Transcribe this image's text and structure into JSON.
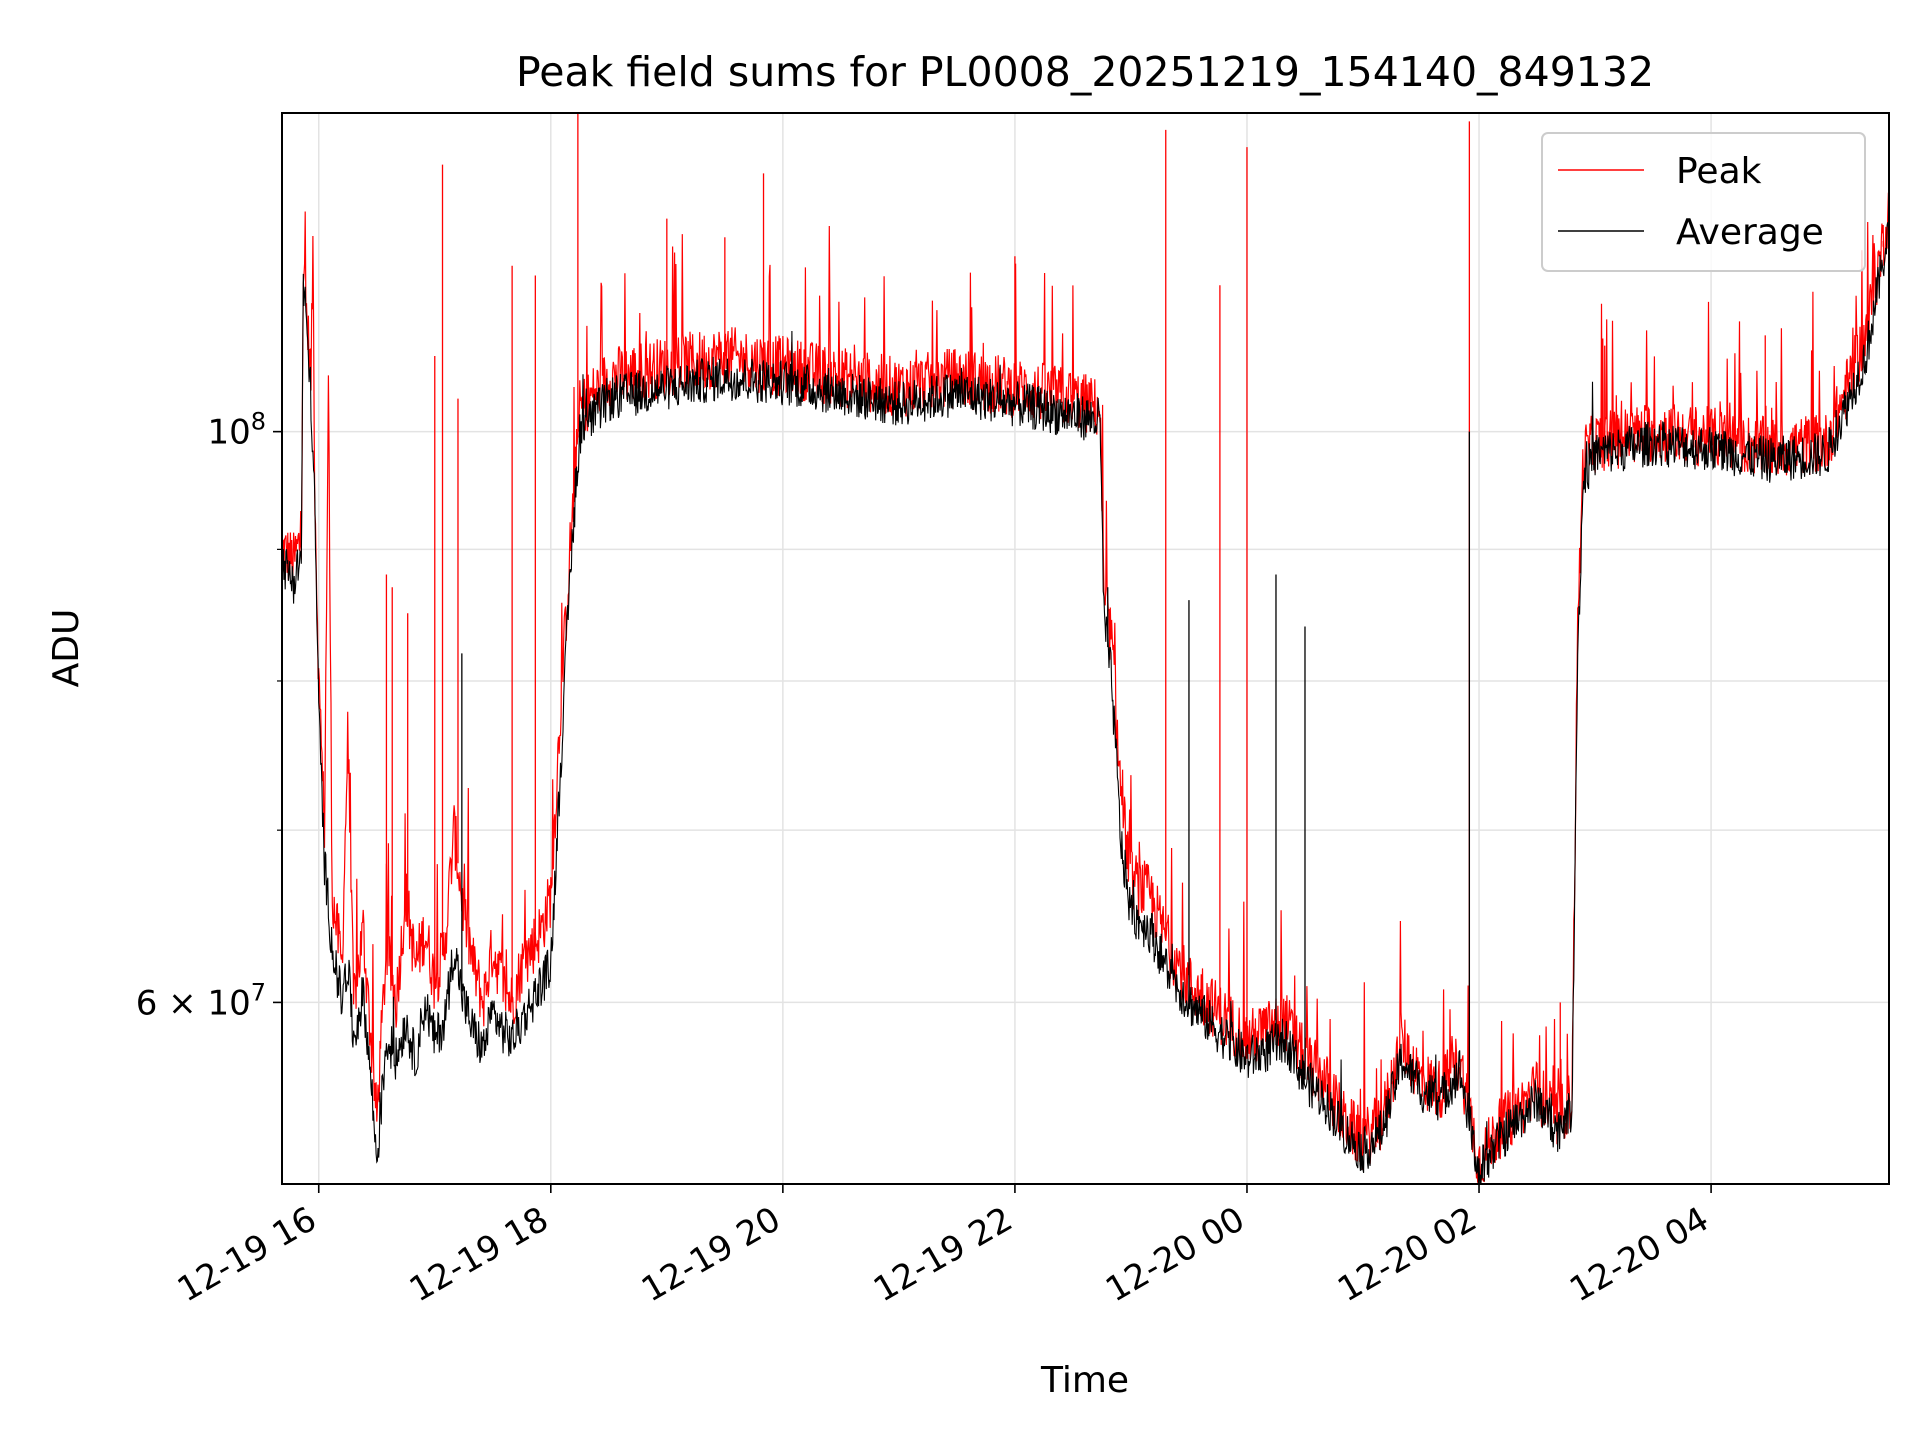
{
  "chart_data": {
    "type": "line",
    "title": "Peak field sums for PL0008_20251219_154140_849132",
    "xlabel": "Time",
    "ylabel": "ADU",
    "y_scale": "log",
    "ylim": [
      51000000,
      133000000
    ],
    "xlim": [
      "2025-12-19 15:41",
      "2025-12-20 05:32"
    ],
    "grid": true,
    "legend_position": "top-right",
    "x_ticks": [
      {
        "time": "2025-12-19 16:00",
        "label": "12-19 16"
      },
      {
        "time": "2025-12-19 18:00",
        "label": "12-19 18"
      },
      {
        "time": "2025-12-19 20:00",
        "label": "12-19 20"
      },
      {
        "time": "2025-12-19 22:00",
        "label": "12-19 22"
      },
      {
        "time": "2025-12-20 00:00",
        "label": "12-20 00"
      },
      {
        "time": "2025-12-20 02:00",
        "label": "12-20 02"
      },
      {
        "time": "2025-12-20 04:00",
        "label": "12-20 04"
      }
    ],
    "y_ticks": [
      {
        "value": 100000000,
        "base": "10",
        "exp": "8"
      },
      {
        "value": 60000000,
        "base": "6 × 10",
        "exp": "7"
      }
    ],
    "y_minor_ticks": [
      70000000,
      80000000,
      90000000
    ],
    "series": [
      {
        "name": "Peak",
        "color": "#ff0000",
        "points": [
          [
            "2025-12-19 15:41",
            90000000
          ],
          [
            "2025-12-19 15:47",
            89000000
          ],
          [
            "2025-12-19 15:51",
            91000000
          ],
          [
            "2025-12-19 15:52",
            116000000
          ],
          [
            "2025-12-19 15:53",
            113000000
          ],
          [
            "2025-12-19 15:56",
            105000000
          ],
          [
            "2025-12-19 15:57",
            118000000
          ],
          [
            "2025-12-19 15:58",
            95000000
          ],
          [
            "2025-12-19 16:00",
            80000000
          ],
          [
            "2025-12-19 16:03",
            70000000
          ],
          [
            "2025-12-19 16:05",
            104000000
          ],
          [
            "2025-12-19 16:07",
            66000000
          ],
          [
            "2025-12-19 16:12",
            62000000
          ],
          [
            "2025-12-19 16:15",
            76000000
          ],
          [
            "2025-12-19 16:18",
            60000000
          ],
          [
            "2025-12-19 16:23",
            64000000
          ],
          [
            "2025-12-19 16:27",
            58000000
          ],
          [
            "2025-12-19 16:30",
            54000000
          ],
          [
            "2025-12-19 16:35",
            63000000
          ],
          [
            "2025-12-19 16:40",
            60000000
          ],
          [
            "2025-12-19 16:45",
            66000000
          ],
          [
            "2025-12-19 16:50",
            62000000
          ],
          [
            "2025-12-19 16:55",
            64000000
          ],
          [
            "2025-12-19 17:00",
            61000000
          ],
          [
            "2025-12-19 17:05",
            63000000
          ],
          [
            "2025-12-19 17:10",
            70000000
          ],
          [
            "2025-12-19 17:15",
            65000000
          ],
          [
            "2025-12-19 17:20",
            62000000
          ],
          [
            "2025-12-19 17:25",
            60000000
          ],
          [
            "2025-12-19 17:30",
            63000000
          ],
          [
            "2025-12-19 17:35",
            61000000
          ],
          [
            "2025-12-19 17:40",
            60000000
          ],
          [
            "2025-12-19 17:45",
            62000000
          ],
          [
            "2025-12-19 17:50",
            63000000
          ],
          [
            "2025-12-19 17:55",
            64000000
          ],
          [
            "2025-12-19 18:00",
            66000000
          ],
          [
            "2025-12-19 18:05",
            78000000
          ],
          [
            "2025-12-19 18:10",
            90000000
          ],
          [
            "2025-12-19 18:15",
            102000000
          ],
          [
            "2025-12-19 18:30",
            105000000
          ],
          [
            "2025-12-19 19:00",
            106000000
          ],
          [
            "2025-12-19 19:30",
            107000000
          ],
          [
            "2025-12-19 20:00",
            106000000
          ],
          [
            "2025-12-19 20:30",
            105000000
          ],
          [
            "2025-12-19 21:00",
            104000000
          ],
          [
            "2025-12-19 21:30",
            105000000
          ],
          [
            "2025-12-19 22:00",
            104000000
          ],
          [
            "2025-12-19 22:30",
            103000000
          ],
          [
            "2025-12-19 22:44",
            102000000
          ],
          [
            "2025-12-19 22:46",
            86000000
          ],
          [
            "2025-12-19 22:50",
            83000000
          ],
          [
            "2025-12-19 22:55",
            72000000
          ],
          [
            "2025-12-19 23:00",
            67000000
          ],
          [
            "2025-12-19 23:10",
            66000000
          ],
          [
            "2025-12-19 23:20",
            63000000
          ],
          [
            "2025-12-19 23:30",
            61000000
          ],
          [
            "2025-12-19 23:40",
            60000000
          ],
          [
            "2025-12-19 23:50",
            59000000
          ],
          [
            "2025-12-20 00:00",
            58000000
          ],
          [
            "2025-12-20 00:10",
            58500000
          ],
          [
            "2025-12-20 00:20",
            59000000
          ],
          [
            "2025-12-20 00:30",
            57000000
          ],
          [
            "2025-12-20 00:40",
            56000000
          ],
          [
            "2025-12-20 00:50",
            54000000
          ],
          [
            "2025-12-20 01:00",
            53000000
          ],
          [
            "2025-12-20 01:10",
            54000000
          ],
          [
            "2025-12-20 01:20",
            58000000
          ],
          [
            "2025-12-20 01:30",
            56000000
          ],
          [
            "2025-12-20 01:40",
            55500000
          ],
          [
            "2025-12-20 01:50",
            57000000
          ],
          [
            "2025-12-20 02:00",
            52000000
          ],
          [
            "2025-12-20 02:10",
            53500000
          ],
          [
            "2025-12-20 02:20",
            54500000
          ],
          [
            "2025-12-20 02:30",
            55500000
          ],
          [
            "2025-12-20 02:40",
            54000000
          ],
          [
            "2025-12-20 02:48",
            55000000
          ],
          [
            "2025-12-20 02:51",
            84000000
          ],
          [
            "2025-12-20 02:54",
            98000000
          ],
          [
            "2025-12-20 03:00",
            99000000
          ],
          [
            "2025-12-20 03:30",
            100000000
          ],
          [
            "2025-12-20 04:00",
            99500000
          ],
          [
            "2025-12-20 04:30",
            98500000
          ],
          [
            "2025-12-20 05:00",
            99000000
          ],
          [
            "2025-12-20 05:20",
            109000000
          ],
          [
            "2025-12-20 05:32",
            122000000
          ]
        ],
        "spikes": [
          [
            "2025-12-19 16:35",
            88000000
          ],
          [
            "2025-12-19 16:38",
            87000000
          ],
          [
            "2025-12-19 16:46",
            85000000
          ],
          [
            "2025-12-19 17:00",
            107000000
          ],
          [
            "2025-12-19 17:04",
            127000000
          ],
          [
            "2025-12-19 17:12",
            103000000
          ],
          [
            "2025-12-19 17:40",
            116000000
          ],
          [
            "2025-12-19 17:52",
            115000000
          ],
          [
            "2025-12-19 18:14",
            133000000
          ],
          [
            "2025-12-19 19:00",
            121000000
          ],
          [
            "2025-12-19 19:30",
            119000000
          ],
          [
            "2025-12-19 19:50",
            126000000
          ],
          [
            "2025-12-19 22:00",
            117000000
          ],
          [
            "2025-12-19 23:18",
            131000000
          ],
          [
            "2025-12-19 23:46",
            114000000
          ],
          [
            "2025-12-20 00:00",
            129000000
          ],
          [
            "2025-12-20 01:55",
            132000000
          ],
          [
            "2025-12-20 02:42",
            60000000
          ],
          [
            "2025-12-20 03:05",
            108000000
          ],
          [
            "2025-12-20 04:28",
            109000000
          ],
          [
            "2025-12-20 05:29",
            118000000
          ]
        ]
      },
      {
        "name": "Average",
        "color": "#000000",
        "points": [
          [
            "2025-12-19 15:41",
            89000000
          ],
          [
            "2025-12-19 15:47",
            87500000
          ],
          [
            "2025-12-19 15:51",
            89500000
          ],
          [
            "2025-12-19 15:52",
            114000000
          ],
          [
            "2025-12-19 15:53",
            112000000
          ],
          [
            "2025-12-19 15:56",
            103000000
          ],
          [
            "2025-12-19 15:58",
            93000000
          ],
          [
            "2025-12-19 16:00",
            78000000
          ],
          [
            "2025-12-19 16:03",
            68000000
          ],
          [
            "2025-12-19 16:07",
            63000000
          ],
          [
            "2025-12-19 16:12",
            60000000
          ],
          [
            "2025-12-19 16:15",
            62000000
          ],
          [
            "2025-12-19 16:18",
            58000000
          ],
          [
            "2025-12-19 16:23",
            60500000
          ],
          [
            "2025-12-19 16:27",
            56000000
          ],
          [
            "2025-12-19 16:30",
            52000000
          ],
          [
            "2025-12-19 16:35",
            58000000
          ],
          [
            "2025-12-19 16:40",
            57000000
          ],
          [
            "2025-12-19 16:45",
            59000000
          ],
          [
            "2025-12-19 16:50",
            57000000
          ],
          [
            "2025-12-19 16:55",
            60000000
          ],
          [
            "2025-12-19 17:00",
            58000000
          ],
          [
            "2025-12-19 17:05",
            59000000
          ],
          [
            "2025-12-19 17:10",
            63000000
          ],
          [
            "2025-12-19 17:15",
            60000000
          ],
          [
            "2025-12-19 17:20",
            58500000
          ],
          [
            "2025-12-19 17:25",
            57500000
          ],
          [
            "2025-12-19 17:30",
            59500000
          ],
          [
            "2025-12-19 17:35",
            58500000
          ],
          [
            "2025-12-19 17:40",
            58000000
          ],
          [
            "2025-12-19 17:45",
            59000000
          ],
          [
            "2025-12-19 17:50",
            60000000
          ],
          [
            "2025-12-19 17:55",
            61000000
          ],
          [
            "2025-12-19 18:00",
            62000000
          ],
          [
            "2025-12-19 18:05",
            74000000
          ],
          [
            "2025-12-19 18:10",
            88000000
          ],
          [
            "2025-12-19 18:15",
            100000000
          ],
          [
            "2025-12-19 18:30",
            103000000
          ],
          [
            "2025-12-19 19:00",
            104000000
          ],
          [
            "2025-12-19 19:30",
            105000000
          ],
          [
            "2025-12-19 20:00",
            104500000
          ],
          [
            "2025-12-19 20:30",
            103500000
          ],
          [
            "2025-12-19 21:00",
            102500000
          ],
          [
            "2025-12-19 21:30",
            103500000
          ],
          [
            "2025-12-19 22:00",
            102500000
          ],
          [
            "2025-12-19 22:30",
            101500000
          ],
          [
            "2025-12-19 22:44",
            101000000
          ],
          [
            "2025-12-19 22:46",
            85000000
          ],
          [
            "2025-12-19 22:50",
            80000000
          ],
          [
            "2025-12-19 22:55",
            69000000
          ],
          [
            "2025-12-19 23:00",
            65000000
          ],
          [
            "2025-12-19 23:10",
            64000000
          ],
          [
            "2025-12-19 23:20",
            61500000
          ],
          [
            "2025-12-19 23:30",
            60000000
          ],
          [
            "2025-12-19 23:40",
            59000000
          ],
          [
            "2025-12-19 23:50",
            58000000
          ],
          [
            "2025-12-20 00:00",
            57000000
          ],
          [
            "2025-12-20 00:10",
            57500000
          ],
          [
            "2025-12-20 00:20",
            58000000
          ],
          [
            "2025-12-20 00:30",
            56000000
          ],
          [
            "2025-12-20 00:40",
            55000000
          ],
          [
            "2025-12-20 00:50",
            53500000
          ],
          [
            "2025-12-20 01:00",
            52500000
          ],
          [
            "2025-12-20 01:10",
            53500000
          ],
          [
            "2025-12-20 01:20",
            57000000
          ],
          [
            "2025-12-20 01:30",
            55500000
          ],
          [
            "2025-12-20 01:40",
            55000000
          ],
          [
            "2025-12-20 01:50",
            56500000
          ],
          [
            "2025-12-20 02:00",
            51500000
          ],
          [
            "2025-12-20 02:10",
            53000000
          ],
          [
            "2025-12-20 02:20",
            54000000
          ],
          [
            "2025-12-20 02:30",
            55000000
          ],
          [
            "2025-12-20 02:40",
            53500000
          ],
          [
            "2025-12-20 02:48",
            54500000
          ],
          [
            "2025-12-20 02:51",
            82000000
          ],
          [
            "2025-12-20 02:54",
            96000000
          ],
          [
            "2025-12-20 03:00",
            98000000
          ],
          [
            "2025-12-20 03:30",
            99000000
          ],
          [
            "2025-12-20 04:00",
            98500000
          ],
          [
            "2025-12-20 04:30",
            97500000
          ],
          [
            "2025-12-20 05:00",
            98000000
          ],
          [
            "2025-12-20 05:20",
            107000000
          ],
          [
            "2025-12-20 05:32",
            120000000
          ]
        ],
        "spikes": [
          [
            "2025-12-19 17:14",
            82000000
          ],
          [
            "2025-12-19 22:48",
            87000000
          ],
          [
            "2025-12-19 23:30",
            86000000
          ],
          [
            "2025-12-20 00:15",
            88000000
          ],
          [
            "2025-12-20 00:30",
            84000000
          ],
          [
            "2025-12-20 01:55",
            100000000
          ]
        ]
      }
    ]
  }
}
